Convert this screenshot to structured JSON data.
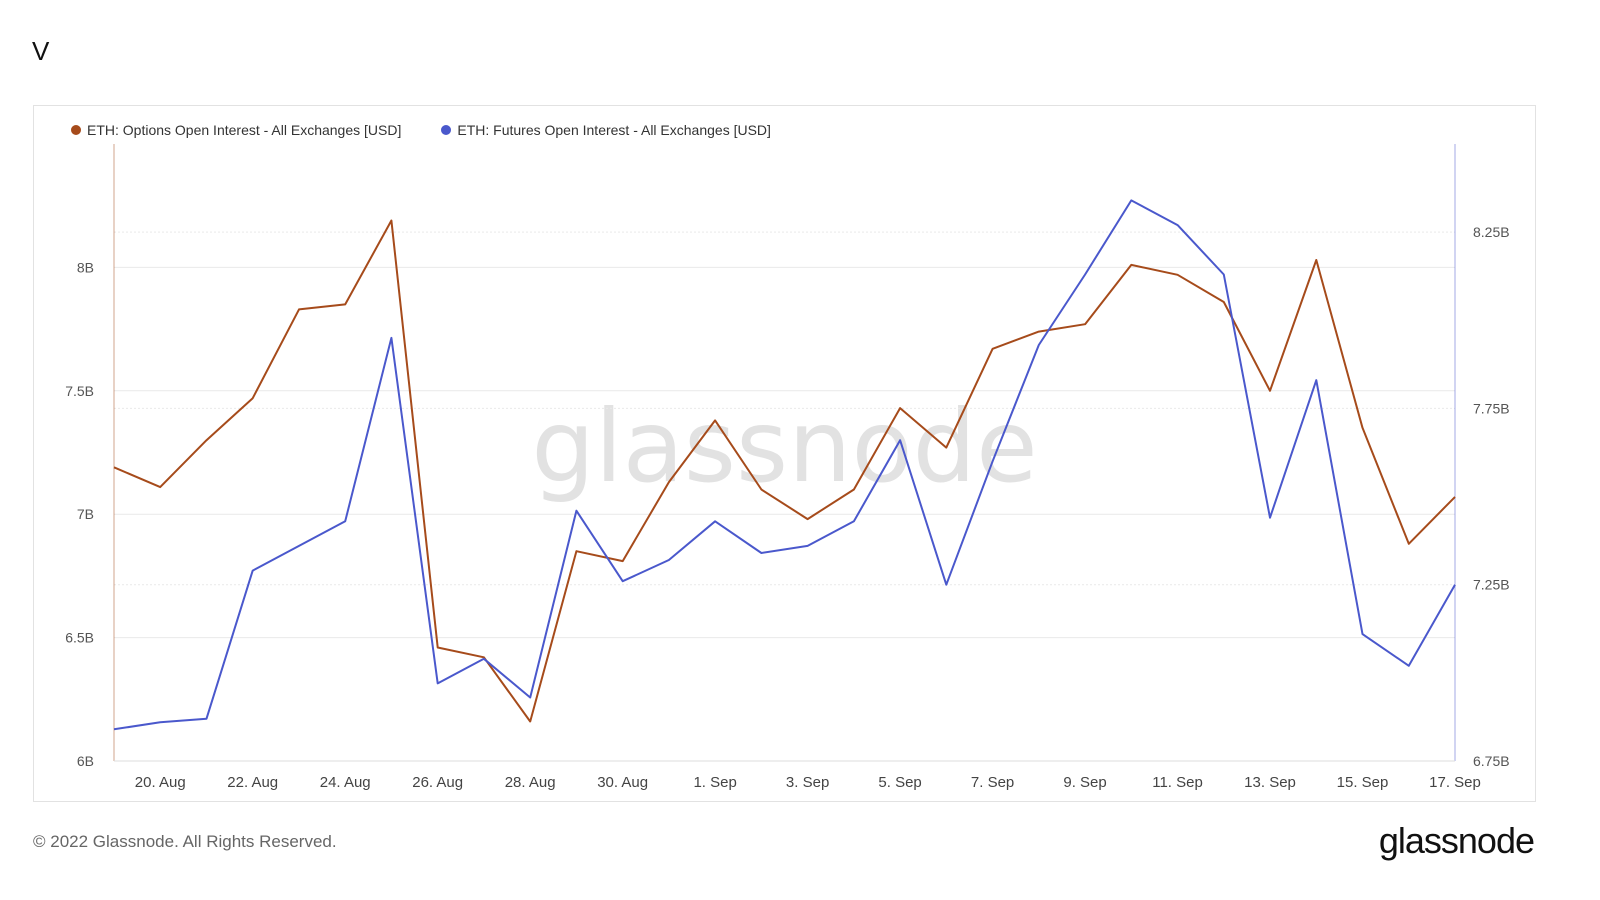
{
  "page": {
    "title": "V"
  },
  "footer": {
    "copyright": "© 2022 Glassnode. All Rights Reserved.",
    "logo": "glassnode"
  },
  "watermark": "glassnode",
  "colors": {
    "options": "#a64b1b",
    "futures": "#4a58cc",
    "grid": "#e9e9e9",
    "axis_text": "#555555"
  },
  "chart_data": {
    "type": "line",
    "x": [
      "19 Aug",
      "20 Aug",
      "21 Aug",
      "22 Aug",
      "23 Aug",
      "24 Aug",
      "25 Aug",
      "26 Aug",
      "27 Aug",
      "28 Aug",
      "29 Aug",
      "30 Aug",
      "31 Aug",
      "1 Sep",
      "2 Sep",
      "3 Sep",
      "4 Sep",
      "5 Sep",
      "6 Sep",
      "7 Sep",
      "8 Sep",
      "9 Sep",
      "10 Sep",
      "11 Sep",
      "12 Sep",
      "13 Sep",
      "14 Sep",
      "15 Sep",
      "16 Sep",
      "17 Sep"
    ],
    "x_tick_labels": [
      "20. Aug",
      "22. Aug",
      "24. Aug",
      "26. Aug",
      "28. Aug",
      "30. Aug",
      "1. Sep",
      "3. Sep",
      "5. Sep",
      "7. Sep",
      "9. Sep",
      "11. Sep",
      "13. Sep",
      "15. Sep",
      "17. Sep"
    ],
    "x_tick_indices": [
      1,
      3,
      5,
      7,
      9,
      11,
      13,
      15,
      17,
      19,
      21,
      23,
      25,
      27,
      29
    ],
    "y_left": {
      "range": [
        6000000000,
        8500000000
      ],
      "ticks": [
        6000000000,
        6500000000,
        7000000000,
        7500000000,
        8000000000
      ],
      "tick_labels": [
        "6B",
        "6.5B",
        "7B",
        "7.5B",
        "8B"
      ]
    },
    "y_right": {
      "range": [
        6750000000,
        8500000000
      ],
      "ticks": [
        6750000000,
        7250000000,
        7750000000,
        8250000000
      ],
      "tick_labels": [
        "6.75B",
        "7.25B",
        "7.75B",
        "8.25B"
      ]
    },
    "grid": true,
    "legend_position": "top-left",
    "series": [
      {
        "name": "ETH: Options Open Interest - All Exchanges [USD]",
        "axis": "left",
        "values": [
          7190000000,
          7110000000,
          7300000000,
          7470000000,
          7830000000,
          7850000000,
          8190000000,
          6460000000,
          6420000000,
          6160000000,
          6850000000,
          6810000000,
          7130000000,
          7380000000,
          7100000000,
          6980000000,
          7100000000,
          7430000000,
          7270000000,
          7670000000,
          7740000000,
          7770000000,
          8010000000,
          7970000000,
          7860000000,
          7500000000,
          8030000000,
          7350000000,
          6880000000,
          7070000000
        ]
      },
      {
        "name": "ETH: Futures Open Interest - All Exchanges [USD]",
        "axis": "right",
        "values": [
          6840000000,
          6860000000,
          6870000000,
          7290000000,
          7360000000,
          7430000000,
          7950000000,
          6970000000,
          7040000000,
          6930000000,
          7460000000,
          7260000000,
          7320000000,
          7430000000,
          7340000000,
          7360000000,
          7430000000,
          7660000000,
          7250000000,
          7600000000,
          7930000000,
          8130000000,
          8340000000,
          8270000000,
          8130000000,
          7440000000,
          7830000000,
          7110000000,
          7020000000,
          7250000000
        ]
      }
    ]
  }
}
